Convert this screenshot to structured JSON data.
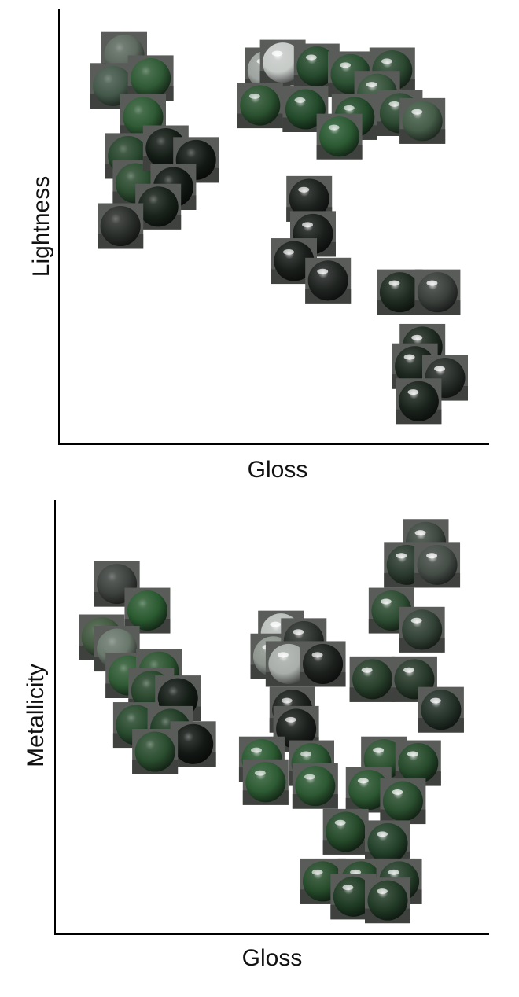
{
  "chart_data": [
    {
      "type": "scatter",
      "title": "",
      "xlabel": "Gloss",
      "ylabel": "Lightness",
      "xlim": [
        0,
        100
      ],
      "ylim": [
        0,
        100
      ],
      "grid": false,
      "legend": "none",
      "marker": "rendered-sphere-thumbnail",
      "series": [
        {
          "values": [
            {
              "x": 10,
              "y": 94,
              "shade": "#5e6a60",
              "gloss": 0.1
            },
            {
              "x": 7,
              "y": 86,
              "shade": "#44584a",
              "gloss": 0.1
            },
            {
              "x": 17,
              "y": 88,
              "shade": "#2f5a35",
              "gloss": 0.15
            },
            {
              "x": 15,
              "y": 78,
              "shade": "#2e5a34",
              "gloss": 0.15
            },
            {
              "x": 11,
              "y": 68,
              "shade": "#27452c",
              "gloss": 0.1
            },
            {
              "x": 13,
              "y": 61,
              "shade": "#2c4c30",
              "gloss": 0.15
            },
            {
              "x": 21,
              "y": 70,
              "shade": "#141c16",
              "gloss": 0.15
            },
            {
              "x": 29,
              "y": 67,
              "shade": "#131915",
              "gloss": 0.2
            },
            {
              "x": 23,
              "y": 60,
              "shade": "#121814",
              "gloss": 0.2
            },
            {
              "x": 19,
              "y": 55,
              "shade": "#18221a",
              "gloss": 0.2
            },
            {
              "x": 9,
              "y": 50,
              "shade": "#2a2e2b",
              "gloss": 0.15
            },
            {
              "x": 48,
              "y": 90,
              "shade": "#9ea49f",
              "gloss": 1.0
            },
            {
              "x": 52,
              "y": 92,
              "shade": "#c6cac7",
              "gloss": 1.0
            },
            {
              "x": 61,
              "y": 91,
              "shade": "#264a2d",
              "gloss": 0.8
            },
            {
              "x": 70,
              "y": 89,
              "shade": "#2a4f31",
              "gloss": 0.8
            },
            {
              "x": 81,
              "y": 90,
              "shade": "#2b4830",
              "gloss": 0.8
            },
            {
              "x": 77,
              "y": 84,
              "shade": "#36523a",
              "gloss": 0.85
            },
            {
              "x": 46,
              "y": 81,
              "shade": "#2b5230",
              "gloss": 0.7
            },
            {
              "x": 58,
              "y": 80,
              "shade": "#234a2b",
              "gloss": 0.75
            },
            {
              "x": 71,
              "y": 78,
              "shade": "#244b2b",
              "gloss": 0.75
            },
            {
              "x": 83,
              "y": 79,
              "shade": "#2d4a32",
              "gloss": 0.8
            },
            {
              "x": 89,
              "y": 77,
              "shade": "#445c48",
              "gloss": 0.85
            },
            {
              "x": 67,
              "y": 73,
              "shade": "#2b5a32",
              "gloss": 0.7
            },
            {
              "x": 59,
              "y": 57,
              "shade": "#1d211e",
              "gloss": 0.85
            },
            {
              "x": 60,
              "y": 48,
              "shade": "#1b1f1c",
              "gloss": 0.85
            },
            {
              "x": 55,
              "y": 41,
              "shade": "#1a1e1b",
              "gloss": 0.85
            },
            {
              "x": 64,
              "y": 36,
              "shade": "#202421",
              "gloss": 0.9
            },
            {
              "x": 83,
              "y": 33,
              "shade": "#1e2a20",
              "gloss": 0.95
            },
            {
              "x": 93,
              "y": 33,
              "shade": "#3a3f3b",
              "gloss": 1.0
            },
            {
              "x": 89,
              "y": 19,
              "shade": "#1f2b21",
              "gloss": 0.95
            },
            {
              "x": 87,
              "y": 14,
              "shade": "#1c261e",
              "gloss": 0.95
            },
            {
              "x": 95,
              "y": 11,
              "shade": "#262c27",
              "gloss": 1.0
            },
            {
              "x": 88,
              "y": 5,
              "shade": "#1a221c",
              "gloss": 0.95
            }
          ]
        }
      ]
    },
    {
      "type": "scatter",
      "title": "",
      "xlabel": "Gloss",
      "ylabel": "Metallicity",
      "xlim": [
        0,
        100
      ],
      "ylim": [
        0,
        100
      ],
      "grid": false,
      "legend": "none",
      "marker": "rendered-sphere-thumbnail",
      "series": [
        {
          "values": [
            {
              "x": 9,
              "y": 84,
              "shade": "#3e423f",
              "gloss": 0.1
            },
            {
              "x": 17,
              "y": 77,
              "shade": "#2a5a30",
              "gloss": 0.15
            },
            {
              "x": 5,
              "y": 70,
              "shade": "#41583f",
              "gloss": 0.1
            },
            {
              "x": 9,
              "y": 67,
              "shade": "#6a786c",
              "gloss": 0.1
            },
            {
              "x": 12,
              "y": 60,
              "shade": "#2f5a34",
              "gloss": 0.15
            },
            {
              "x": 20,
              "y": 61,
              "shade": "#2d5531",
              "gloss": 0.15
            },
            {
              "x": 18,
              "y": 56,
              "shade": "#27452b",
              "gloss": 0.2
            },
            {
              "x": 25,
              "y": 54,
              "shade": "#141c16",
              "gloss": 0.2
            },
            {
              "x": 14,
              "y": 47,
              "shade": "#284a2e",
              "gloss": 0.2
            },
            {
              "x": 23,
              "y": 46,
              "shade": "#1f3b24",
              "gloss": 0.2
            },
            {
              "x": 29,
              "y": 42,
              "shade": "#131815",
              "gloss": 0.25
            },
            {
              "x": 19,
              "y": 40,
              "shade": "#2a4d2f",
              "gloss": 0.2
            },
            {
              "x": 52,
              "y": 71,
              "shade": "#bcc0bd",
              "gloss": 1.0
            },
            {
              "x": 50,
              "y": 65,
              "shade": "#8e958f",
              "gloss": 1.0
            },
            {
              "x": 58,
              "y": 69,
              "shade": "#2c312d",
              "gloss": 0.9
            },
            {
              "x": 54,
              "y": 63,
              "shade": "#a9aeaa",
              "gloss": 1.0
            },
            {
              "x": 63,
              "y": 63,
              "shade": "#1c201d",
              "gloss": 0.85
            },
            {
              "x": 55,
              "y": 51,
              "shade": "#1d211e",
              "gloss": 0.85
            },
            {
              "x": 56,
              "y": 46,
              "shade": "#1b1f1c",
              "gloss": 0.85
            },
            {
              "x": 47,
              "y": 38,
              "shade": "#2b5a31",
              "gloss": 0.7
            },
            {
              "x": 60,
              "y": 37,
              "shade": "#2a5530",
              "gloss": 0.7
            },
            {
              "x": 48,
              "y": 32,
              "shade": "#2d5b33",
              "gloss": 0.7
            },
            {
              "x": 61,
              "y": 31,
              "shade": "#2c5832",
              "gloss": 0.7
            },
            {
              "x": 90,
              "y": 95,
              "shade": "#3e4840",
              "gloss": 1.0
            },
            {
              "x": 85,
              "y": 89,
              "shade": "#2c3b2f",
              "gloss": 0.95
            },
            {
              "x": 93,
              "y": 89,
              "shade": "#444c46",
              "gloss": 1.0
            },
            {
              "x": 81,
              "y": 77,
              "shade": "#2e4d33",
              "gloss": 0.9
            },
            {
              "x": 89,
              "y": 72,
              "shade": "#334236",
              "gloss": 0.95
            },
            {
              "x": 76,
              "y": 59,
              "shade": "#273f2b",
              "gloss": 0.9
            },
            {
              "x": 87,
              "y": 59,
              "shade": "#283a2b",
              "gloss": 0.95
            },
            {
              "x": 94,
              "y": 51,
              "shade": "#25332a",
              "gloss": 0.95
            },
            {
              "x": 79,
              "y": 38,
              "shade": "#2c5230",
              "gloss": 0.85
            },
            {
              "x": 88,
              "y": 37,
              "shade": "#264a2b",
              "gloss": 0.9
            },
            {
              "x": 75,
              "y": 30,
              "shade": "#2b5530",
              "gloss": 0.85
            },
            {
              "x": 84,
              "y": 27,
              "shade": "#2a4f2f",
              "gloss": 0.9
            },
            {
              "x": 69,
              "y": 19,
              "shade": "#254a2a",
              "gloss": 0.8
            },
            {
              "x": 80,
              "y": 16,
              "shade": "#23412a",
              "gloss": 0.85
            },
            {
              "x": 63,
              "y": 6,
              "shade": "#264c2b",
              "gloss": 0.75
            },
            {
              "x": 73,
              "y": 6,
              "shade": "#244729",
              "gloss": 0.8
            },
            {
              "x": 83,
              "y": 6,
              "shade": "#253f2a",
              "gloss": 0.85
            },
            {
              "x": 71,
              "y": 2,
              "shade": "#1f3b24",
              "gloss": 0.8
            },
            {
              "x": 80,
              "y": 1,
              "shade": "#213a26",
              "gloss": 0.85
            }
          ]
        }
      ]
    }
  ]
}
